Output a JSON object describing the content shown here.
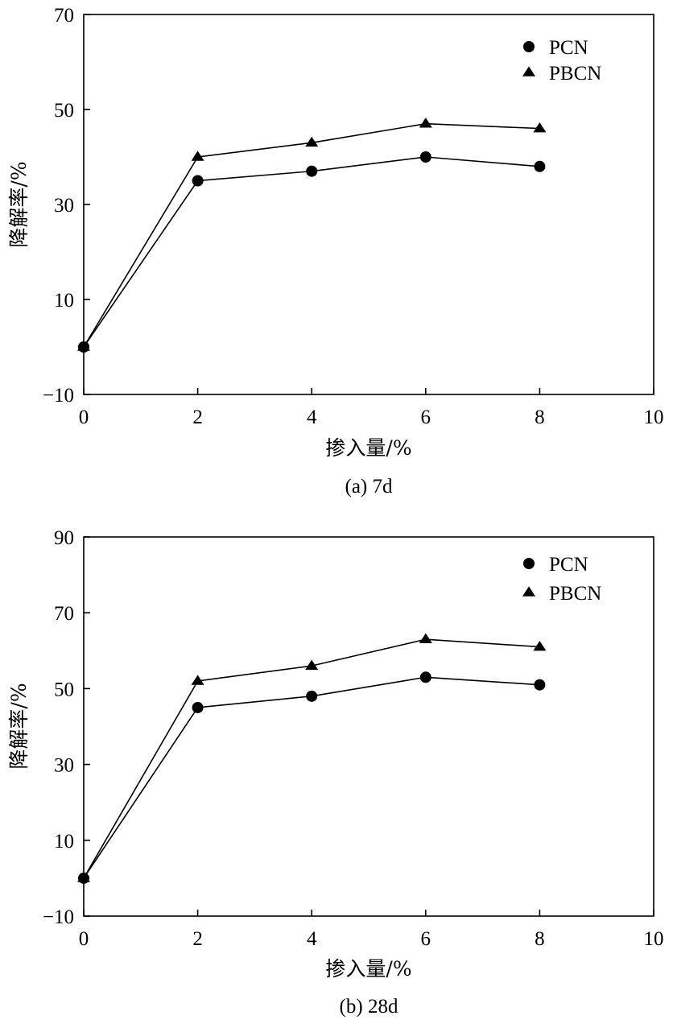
{
  "chart_data": [
    {
      "type": "line",
      "caption": "(a) 7d",
      "xlabel": "掺入量/%",
      "ylabel": "降解率/%",
      "xlim": [
        0,
        10
      ],
      "ylim": [
        -10,
        70
      ],
      "x_ticks": [
        "0",
        "2",
        "4",
        "6",
        "8",
        "10"
      ],
      "y_ticks": [
        "−10",
        "10",
        "30",
        "50",
        "70"
      ],
      "x": [
        0,
        2,
        4,
        6,
        8
      ],
      "series": [
        {
          "name": "PCN",
          "marker": "circle",
          "values": [
            0,
            35,
            37,
            40,
            38
          ]
        },
        {
          "name": "PBCN",
          "marker": "triangle",
          "values": [
            0,
            40,
            43,
            47,
            46
          ]
        }
      ],
      "legend_position": "top-right",
      "grid": false
    },
    {
      "type": "line",
      "caption": "(b) 28d",
      "xlabel": "掺入量/%",
      "ylabel": "降解率/%",
      "xlim": [
        0,
        10
      ],
      "ylim": [
        -10,
        90
      ],
      "x_ticks": [
        "0",
        "2",
        "4",
        "6",
        "8",
        "10"
      ],
      "y_ticks": [
        "−10",
        "10",
        "30",
        "50",
        "70",
        "90"
      ],
      "x": [
        0,
        2,
        4,
        6,
        8
      ],
      "series": [
        {
          "name": "PCN",
          "marker": "circle",
          "values": [
            0,
            45,
            48,
            53,
            51
          ]
        },
        {
          "name": "PBCN",
          "marker": "triangle",
          "values": [
            0,
            52,
            56,
            63,
            61
          ]
        }
      ],
      "legend_position": "top-right",
      "grid": false
    }
  ]
}
